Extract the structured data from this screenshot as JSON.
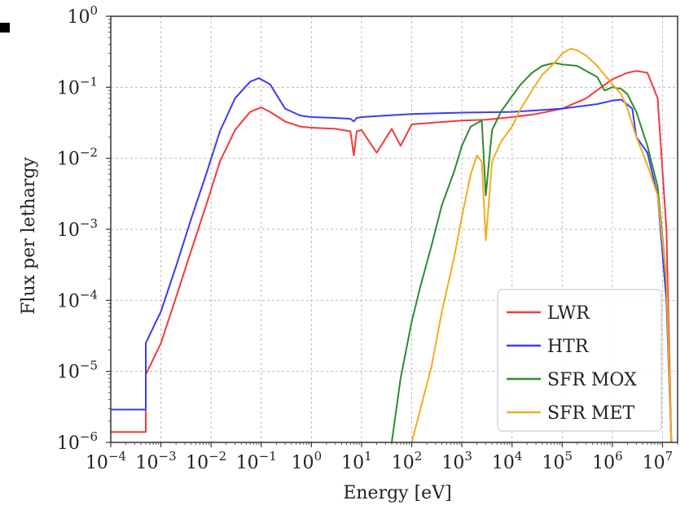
{
  "chart_data": {
    "type": "line",
    "xlabel": "Energy [eV]",
    "ylabel": "Flux per lethargy",
    "xscale": "log",
    "yscale": "log",
    "xlim": [
      0.0001,
      20000000
    ],
    "ylim": [
      1e-06,
      1
    ],
    "grid": true,
    "legend_position": "bottom-right",
    "x_ticks": [
      {
        "base": "10",
        "exp": "−4",
        "value": 0.0001
      },
      {
        "base": "10",
        "exp": "−3",
        "value": 0.001
      },
      {
        "base": "10",
        "exp": "−2",
        "value": 0.01
      },
      {
        "base": "10",
        "exp": "−1",
        "value": 0.1
      },
      {
        "base": "10",
        "exp": "0",
        "value": 1
      },
      {
        "base": "10",
        "exp": "1",
        "value": 10
      },
      {
        "base": "10",
        "exp": "2",
        "value": 100
      },
      {
        "base": "10",
        "exp": "3",
        "value": 1000
      },
      {
        "base": "10",
        "exp": "4",
        "value": 10000
      },
      {
        "base": "10",
        "exp": "5",
        "value": 100000
      },
      {
        "base": "10",
        "exp": "6",
        "value": 1000000
      },
      {
        "base": "10",
        "exp": "7",
        "value": 10000000
      }
    ],
    "y_ticks": [
      {
        "base": "10",
        "exp": "−6",
        "value": 1e-06
      },
      {
        "base": "10",
        "exp": "−5",
        "value": 1e-05
      },
      {
        "base": "10",
        "exp": "−4",
        "value": 0.0001
      },
      {
        "base": "10",
        "exp": "−3",
        "value": 0.001
      },
      {
        "base": "10",
        "exp": "−2",
        "value": 0.01
      },
      {
        "base": "10",
        "exp": "−1",
        "value": 0.1
      },
      {
        "base": "10",
        "exp": "0",
        "value": 1
      }
    ],
    "series": [
      {
        "name": "LWR",
        "color": "#f23a3a",
        "x": [
          5e-05,
          0.0005,
          0.0005,
          0.001,
          0.002,
          0.004,
          0.008,
          0.015,
          0.03,
          0.06,
          0.1,
          0.15,
          0.3,
          0.6,
          1,
          3,
          6,
          7,
          8,
          10,
          20,
          40,
          60,
          100,
          300,
          1000,
          3000,
          10000,
          30000,
          100000,
          300000,
          600000,
          1000000,
          2000000,
          3000000,
          5000000,
          8000000,
          12000000,
          15000000
        ],
        "y": [
          1.4e-06,
          1.4e-06,
          9e-06,
          2.5e-05,
          0.00011,
          0.0005,
          0.0022,
          0.009,
          0.025,
          0.045,
          0.052,
          0.045,
          0.033,
          0.028,
          0.027,
          0.026,
          0.024,
          0.011,
          0.024,
          0.025,
          0.012,
          0.026,
          0.015,
          0.03,
          0.032,
          0.034,
          0.035,
          0.038,
          0.042,
          0.05,
          0.07,
          0.1,
          0.13,
          0.16,
          0.17,
          0.16,
          0.07,
          0.001,
          1e-06
        ]
      },
      {
        "name": "HTR",
        "color": "#3b3bf5",
        "x": [
          5e-05,
          0.0005,
          0.0005,
          0.001,
          0.002,
          0.004,
          0.008,
          0.015,
          0.03,
          0.06,
          0.09,
          0.15,
          0.3,
          0.6,
          1,
          3,
          6,
          7,
          8,
          10,
          30,
          100,
          1000,
          10000,
          100000,
          500000,
          1000000,
          1500000,
          2500000,
          3000000,
          5000000,
          8000000,
          12000000,
          15000000
        ],
        "y": [
          2.9e-06,
          2.9e-06,
          2.5e-05,
          7e-05,
          0.0003,
          0.0014,
          0.006,
          0.024,
          0.07,
          0.12,
          0.135,
          0.11,
          0.05,
          0.04,
          0.038,
          0.037,
          0.036,
          0.033,
          0.037,
          0.038,
          0.04,
          0.042,
          0.044,
          0.045,
          0.05,
          0.058,
          0.065,
          0.067,
          0.05,
          0.02,
          0.012,
          0.003,
          0.0001,
          1e-06
        ]
      },
      {
        "name": "SFR MOX",
        "color": "#2e8b2e",
        "x": [
          40,
          60,
          100,
          150,
          250,
          400,
          700,
          1000,
          1500,
          2500,
          3000,
          4000,
          6000,
          10000,
          15000,
          25000,
          40000,
          70000,
          100000,
          200000,
          300000,
          500000,
          700000,
          1000000,
          1500000,
          2000000,
          3000000,
          5000000,
          8000000,
          12000000,
          15000000
        ],
        "y": [
          1e-06,
          8e-06,
          5e-05,
          0.00016,
          0.0006,
          0.0022,
          0.0065,
          0.015,
          0.028,
          0.034,
          0.003,
          0.025,
          0.045,
          0.075,
          0.11,
          0.16,
          0.2,
          0.22,
          0.21,
          0.2,
          0.17,
          0.14,
          0.09,
          0.1,
          0.095,
          0.08,
          0.045,
          0.015,
          0.004,
          0.0002,
          1e-06
        ]
      },
      {
        "name": "SFR MET",
        "color": "#f5ab1f",
        "x": [
          100,
          150,
          250,
          400,
          700,
          1000,
          1500,
          2000,
          2500,
          3000,
          4000,
          6000,
          10000,
          15000,
          25000,
          40000,
          70000,
          100000,
          150000,
          200000,
          300000,
          500000,
          700000,
          1000000,
          1500000,
          2000000,
          3000000,
          5000000,
          8000000,
          12000000,
          15000000
        ],
        "y": [
          1e-06,
          3e-06,
          1.2e-05,
          7e-05,
          0.0004,
          0.0015,
          0.006,
          0.011,
          0.009,
          0.0007,
          0.009,
          0.017,
          0.028,
          0.05,
          0.09,
          0.15,
          0.22,
          0.3,
          0.35,
          0.33,
          0.28,
          0.2,
          0.15,
          0.11,
          0.08,
          0.05,
          0.02,
          0.008,
          0.003,
          0.0002,
          1e-06
        ]
      }
    ]
  }
}
